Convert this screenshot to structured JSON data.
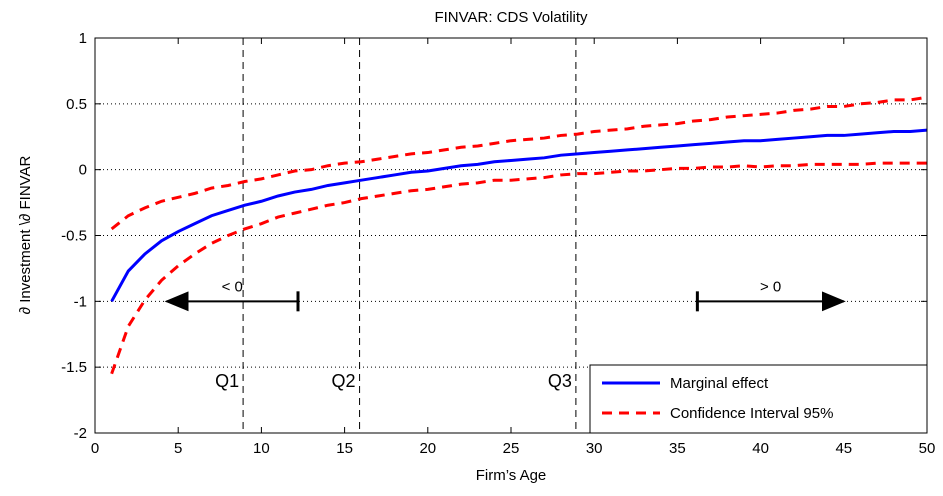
{
  "chart_data": {
    "type": "line",
    "title": "FINVAR: CDS Volatility",
    "x_label": "Firm’s Age",
    "y_label": "∂ Investment \\∂ FINVAR",
    "x": [
      1,
      2,
      3,
      4,
      5,
      6,
      7,
      8,
      9,
      10,
      11,
      12,
      13,
      14,
      15,
      16,
      17,
      18,
      19,
      20,
      21,
      22,
      23,
      24,
      25,
      26,
      27,
      28,
      29,
      30,
      31,
      32,
      33,
      34,
      35,
      36,
      37,
      38,
      39,
      40,
      41,
      42,
      43,
      44,
      45,
      46,
      47,
      48,
      49,
      50
    ],
    "series": [
      {
        "name": "Marginal effect",
        "color": "#0000ff",
        "dash": false,
        "values": [
          -1.0,
          -0.77,
          -0.64,
          -0.54,
          -0.47,
          -0.41,
          -0.35,
          -0.31,
          -0.27,
          -0.24,
          -0.2,
          -0.17,
          -0.15,
          -0.12,
          -0.1,
          -0.08,
          -0.06,
          -0.04,
          -0.02,
          -0.01,
          0.01,
          0.03,
          0.04,
          0.06,
          0.07,
          0.08,
          0.09,
          0.11,
          0.12,
          0.13,
          0.14,
          0.15,
          0.16,
          0.17,
          0.18,
          0.19,
          0.2,
          0.21,
          0.22,
          0.22,
          0.23,
          0.24,
          0.25,
          0.26,
          0.26,
          0.27,
          0.28,
          0.29,
          0.29,
          0.3
        ]
      },
      {
        "name": "Confidence Interval 95%",
        "color": "#ff0000",
        "dash": true,
        "values": [
          -0.45,
          -0.35,
          -0.29,
          -0.24,
          -0.21,
          -0.18,
          -0.14,
          -0.12,
          -0.09,
          -0.07,
          -0.04,
          -0.01,
          0.0,
          0.03,
          0.05,
          0.06,
          0.08,
          0.1,
          0.12,
          0.13,
          0.15,
          0.17,
          0.18,
          0.2,
          0.22,
          0.23,
          0.24,
          0.26,
          0.27,
          0.29,
          0.3,
          0.31,
          0.33,
          0.34,
          0.35,
          0.37,
          0.38,
          0.4,
          0.41,
          0.42,
          0.43,
          0.45,
          0.46,
          0.48,
          0.48,
          0.5,
          0.51,
          0.53,
          0.53,
          0.55
        ]
      },
      {
        "color": "#ff0000",
        "dash": true,
        "values": [
          -1.55,
          -1.19,
          -0.99,
          -0.84,
          -0.73,
          -0.64,
          -0.56,
          -0.5,
          -0.45,
          -0.41,
          -0.36,
          -0.33,
          -0.3,
          -0.27,
          -0.25,
          -0.22,
          -0.2,
          -0.18,
          -0.16,
          -0.15,
          -0.13,
          -0.11,
          -0.1,
          -0.08,
          -0.08,
          -0.07,
          -0.06,
          -0.04,
          -0.03,
          -0.03,
          -0.02,
          -0.01,
          -0.01,
          0.0,
          0.01,
          0.01,
          0.02,
          0.02,
          0.03,
          0.02,
          0.03,
          0.03,
          0.04,
          0.04,
          0.04,
          0.04,
          0.05,
          0.05,
          0.05,
          0.05
        ]
      }
    ],
    "xlim": [
      0,
      50
    ],
    "xticks": [
      0,
      5,
      10,
      15,
      20,
      25,
      30,
      35,
      40,
      45,
      50
    ],
    "ylim": [
      -2,
      1
    ],
    "yticks": [
      1,
      0.5,
      0,
      -0.5,
      -1,
      -1.5,
      -2
    ],
    "grid": true,
    "legend": "lower right",
    "vlines": [
      {
        "x": 8.9,
        "label": "Q1"
      },
      {
        "x": 15.9,
        "label": "Q2"
      },
      {
        "x": 28.9,
        "label": "Q3"
      }
    ],
    "arrows": [
      {
        "text": "< 0",
        "x_from": 12.2,
        "x_to": 4.3,
        "y": -1
      },
      {
        "text": "> 0",
        "x_from": 36.2,
        "x_to": 45,
        "y": -1
      }
    ]
  }
}
